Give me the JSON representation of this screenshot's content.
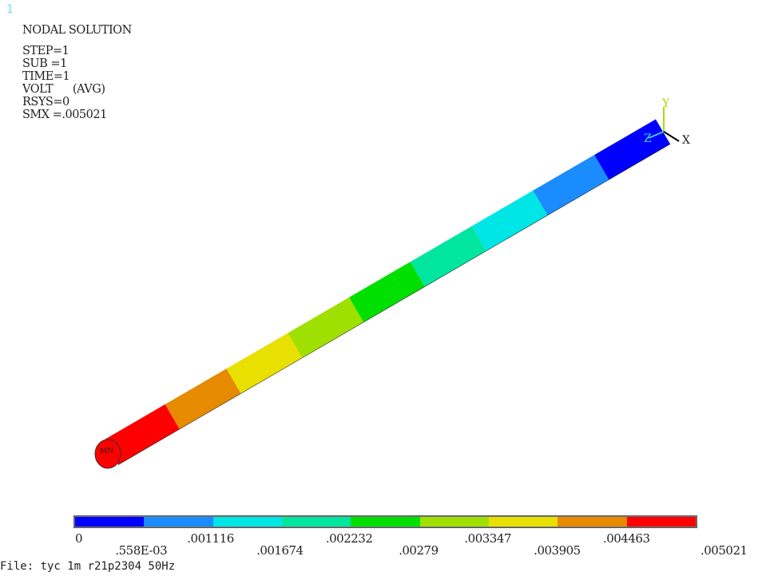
{
  "window_number": "1",
  "info": {
    "title": "NODAL SOLUTION",
    "step": "STEP=1",
    "sub": "SUB =1",
    "time": "TIME=1",
    "volt": "VOLT      (AVG)",
    "rsys": "RSYS=0",
    "smx": "SMX =.005021"
  },
  "triad": {
    "y_label": "Y",
    "z_label": "Z",
    "x_label": "X"
  },
  "model": {
    "min_marker": "MN",
    "band_colors": [
      "#0000ff",
      "#1a8cff",
      "#00e5e5",
      "#00e5a0",
      "#00e000",
      "#a0e000",
      "#e8e000",
      "#e68a00",
      "#ff0000"
    ]
  },
  "legend": {
    "colors": [
      "#0000ff",
      "#1a8cff",
      "#00e5e5",
      "#00e5a0",
      "#00e000",
      "#a0e000",
      "#e8e000",
      "#e68a00",
      "#ff0000"
    ],
    "ticks": [
      "0",
      ".558E-03",
      ".001116",
      ".001674",
      ".002232",
      ".00279",
      ".003347",
      ".003905",
      ".004463",
      ".005021"
    ]
  },
  "file_label": "File: tyc 1m r21p2304 50Hz"
}
